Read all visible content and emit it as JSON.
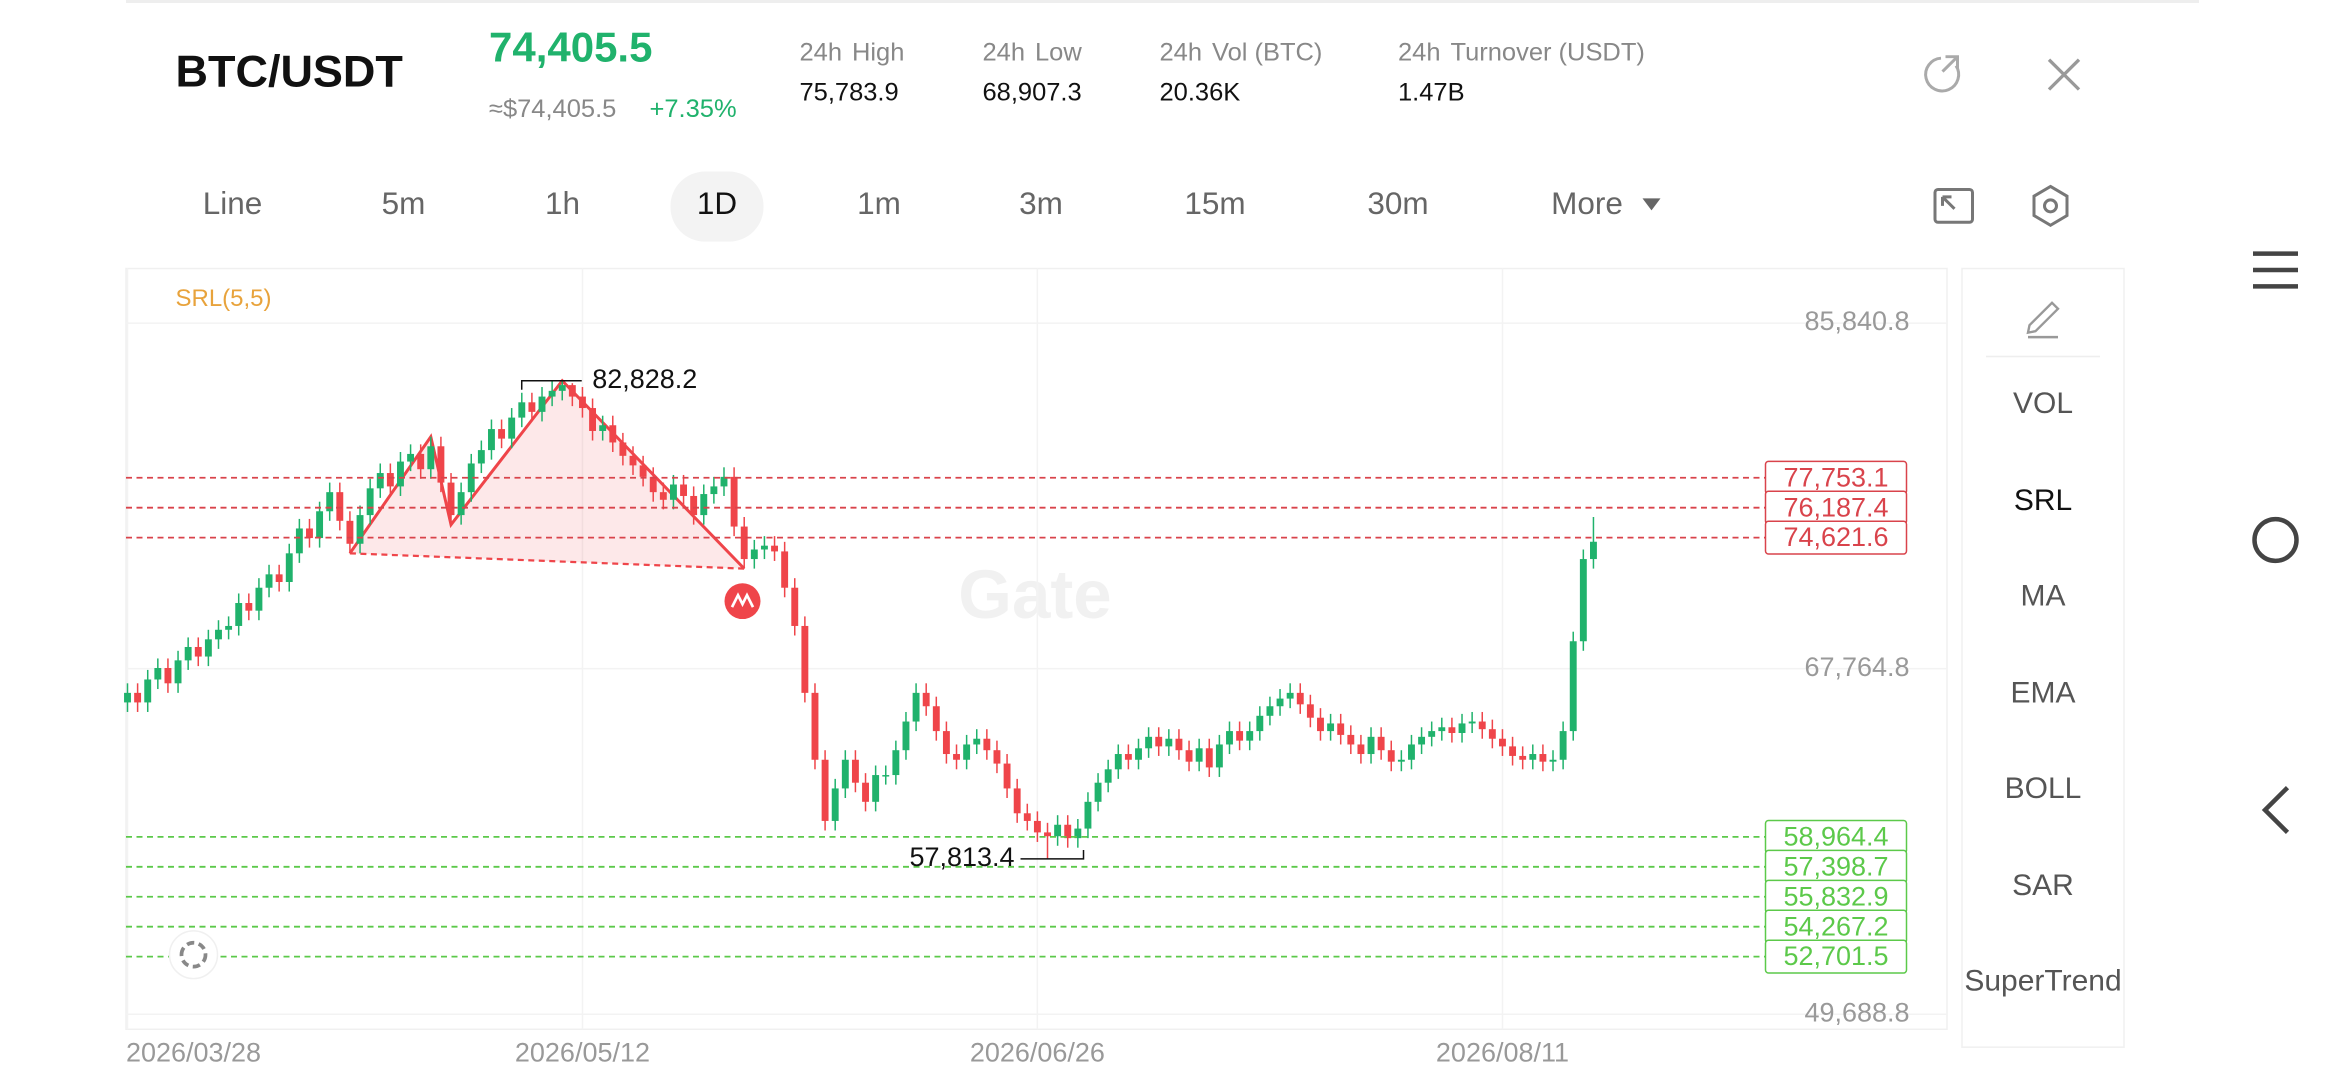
{
  "header": {
    "pair": "BTC/USDT",
    "price": "74,405.5",
    "price_fiat": "≈$74,405.5",
    "change": "+7.35%",
    "stats": [
      {
        "period": "24h",
        "name": "High",
        "value": "75,783.9"
      },
      {
        "period": "24h",
        "name": "Low",
        "value": "68,907.3"
      },
      {
        "period": "24h",
        "name": "Vol (BTC)",
        "value": "20.36K"
      },
      {
        "period": "24h",
        "name": "Turnover (USDT)",
        "value": "1.47B"
      }
    ]
  },
  "tabs": {
    "items": [
      "Line",
      "5m",
      "1h",
      "1D",
      "1m",
      "3m",
      "15m",
      "30m",
      "More"
    ],
    "selected": "1D"
  },
  "indicators": {
    "items": [
      "VOL",
      "SRL",
      "MA",
      "EMA",
      "BOLL",
      "SAR",
      "SuperTrend"
    ],
    "active": "SRL"
  },
  "chart_data": {
    "type": "candlestick",
    "indicator_label": "SRL(5,5)",
    "watermark": "Gate",
    "up_color": "#20b26c",
    "down_color": "#ef454a",
    "categories": [
      "2026/03/28",
      null,
      null,
      null,
      null,
      null,
      null,
      null,
      null,
      null,
      null,
      null,
      null,
      null,
      null,
      null,
      null,
      null,
      null,
      null,
      null,
      null,
      null,
      null,
      null,
      null,
      null,
      null,
      null,
      null,
      null,
      null,
      null,
      null,
      null,
      null,
      null,
      null,
      null,
      null,
      null,
      null,
      null,
      null,
      null,
      "2026/05/12",
      null,
      null,
      null,
      null,
      null,
      null,
      null,
      null,
      null,
      null,
      null,
      null,
      null,
      null,
      null,
      null,
      null,
      null,
      null,
      null,
      null,
      null,
      null,
      null,
      null,
      null,
      null,
      null,
      null,
      null,
      null,
      null,
      null,
      null,
      null,
      null,
      null,
      null,
      null,
      null,
      null,
      null,
      null,
      null,
      "2026/06/26",
      null,
      null,
      null,
      null,
      null,
      null,
      null,
      null,
      null,
      null,
      null,
      null,
      null,
      null,
      null,
      null,
      null,
      null,
      null,
      null,
      null,
      null,
      null,
      null,
      null,
      null,
      null,
      null,
      null,
      null,
      null,
      null,
      null,
      null,
      null,
      null,
      null,
      null,
      null,
      null,
      null,
      null,
      null,
      null,
      null,
      "2026/08/11",
      null,
      null,
      null,
      null,
      null,
      null,
      null,
      null,
      null
    ],
    "open": [
      66000,
      66500,
      66000,
      67200,
      67800,
      67000,
      68200,
      68900,
      68400,
      69300,
      69800,
      70000,
      71200,
      70800,
      72000,
      72700,
      72300,
      73800,
      75100,
      74600,
      76000,
      77000,
      75500,
      74300,
      75800,
      77200,
      78000,
      77300,
      78600,
      79000,
      78200,
      79400,
      77500,
      75800,
      77000,
      78500,
      79200,
      80300,
      79800,
      80900,
      81700,
      81200,
      82000,
      82300,
      82600,
      82000,
      81400,
      80200,
      80500,
      79600,
      78900,
      78400,
      77800,
      77000,
      76600,
      77400,
      76800,
      75800,
      76900,
      77300,
      77800,
      75200,
      73500,
      74000,
      74200,
      73900,
      72000,
      70000,
      66500,
      63000,
      59800,
      61500,
      63000,
      61800,
      60800,
      62200,
      62200,
      63500,
      65000,
      66500,
      65800,
      64500,
      63300,
      63000,
      63800,
      64100,
      63500,
      62800,
      61500,
      60200,
      59800,
      59200,
      59000,
      59600,
      58900,
      59400,
      60800,
      61800,
      62500,
      63300,
      63000,
      63600,
      64200,
      63700,
      64100,
      63500,
      62900,
      63600,
      62600,
      63800,
      64500,
      64000,
      64500,
      65300,
      65800,
      66200,
      66500,
      65900,
      65200,
      64500,
      64900,
      64300,
      63800,
      63300,
      64200,
      63500,
      62900,
      63000,
      63800,
      64200,
      64500,
      64700,
      64400,
      64900,
      65000,
      64600,
      64100,
      63700,
      63200,
      63000,
      63300,
      62900,
      63000,
      64500,
      69200,
      73500
    ],
    "high": [
      67000,
      67000,
      67700,
      68300,
      68300,
      68700,
      69400,
      69400,
      69800,
      70300,
      70500,
      71700,
      71700,
      72500,
      73200,
      73200,
      74300,
      75600,
      75600,
      76500,
      77500,
      77500,
      76000,
      76300,
      77700,
      78500,
      78500,
      79100,
      79500,
      79500,
      79900,
      79900,
      78000,
      77500,
      79000,
      79700,
      80800,
      80800,
      81400,
      82200,
      82200,
      82500,
      82800,
      82828.2,
      82700,
      82500,
      81900,
      81000,
      81000,
      80100,
      79400,
      78900,
      78300,
      77500,
      77900,
      77900,
      77300,
      77400,
      77800,
      78300,
      78300,
      75700,
      74500,
      74700,
      74700,
      74400,
      72500,
      70500,
      67000,
      63500,
      62000,
      63500,
      63500,
      62300,
      62700,
      62700,
      64000,
      65500,
      67000,
      67000,
      66300,
      65000,
      63800,
      64300,
      64600,
      64600,
      64000,
      63300,
      62000,
      60700,
      60300,
      59700,
      60100,
      60100,
      59900,
      61300,
      62300,
      63000,
      63800,
      63800,
      64100,
      64700,
      64700,
      64600,
      64600,
      64000,
      64100,
      64100,
      64300,
      65000,
      65000,
      65000,
      65800,
      66300,
      66700,
      67000,
      67000,
      66400,
      65700,
      65400,
      65400,
      64800,
      64300,
      64700,
      64700,
      64000,
      63500,
      64300,
      64700,
      65000,
      65200,
      65200,
      65400,
      65500,
      65500,
      65100,
      64600,
      64200,
      63700,
      63800,
      63800,
      63500,
      65000,
      69700,
      74000,
      75700
    ],
    "low": [
      65500,
      65500,
      65500,
      66700,
      66500,
      66500,
      67700,
      67900,
      67900,
      68800,
      69300,
      69500,
      70300,
      70300,
      71500,
      71800,
      71800,
      73300,
      74100,
      74100,
      75500,
      75000,
      73800,
      73800,
      75300,
      76700,
      76800,
      76800,
      78100,
      77700,
      77700,
      77000,
      75300,
      75300,
      76500,
      78000,
      78700,
      79300,
      79300,
      80400,
      80700,
      80700,
      81500,
      81800,
      81500,
      80900,
      79700,
      79700,
      79100,
      78400,
      77900,
      77300,
      76500,
      76100,
      76100,
      76300,
      75300,
      75300,
      76400,
      76800,
      74700,
      73000,
      73000,
      73500,
      73400,
      71500,
      69500,
      66000,
      62500,
      59300,
      59300,
      61000,
      61300,
      60300,
      60300,
      61700,
      61700,
      63000,
      64500,
      65300,
      64000,
      62800,
      62500,
      62500,
      63300,
      63000,
      62300,
      61000,
      59700,
      59300,
      58700,
      57813.4,
      58500,
      58400,
      58400,
      58900,
      60300,
      61300,
      62000,
      62500,
      62500,
      63100,
      63200,
      63200,
      63000,
      62400,
      62400,
      62100,
      62100,
      63300,
      63500,
      63500,
      64000,
      64800,
      65300,
      65700,
      65400,
      64700,
      64000,
      64000,
      63800,
      63300,
      62800,
      62800,
      63000,
      62400,
      62400,
      62500,
      63300,
      63700,
      64000,
      63900,
      63900,
      64400,
      64100,
      63600,
      63200,
      62700,
      62500,
      62500,
      62400,
      62400,
      62500,
      64000,
      68700,
      73000
    ],
    "close": [
      66500,
      66000,
      67200,
      67800,
      67000,
      68200,
      68900,
      68400,
      69300,
      69800,
      70000,
      71200,
      70800,
      72000,
      72700,
      72300,
      73800,
      75100,
      74600,
      76000,
      77000,
      75500,
      74300,
      75800,
      77200,
      78000,
      77300,
      78600,
      79000,
      78200,
      79400,
      77500,
      75800,
      77000,
      78500,
      79200,
      80300,
      79800,
      80900,
      81700,
      81200,
      82000,
      82300,
      82600,
      82000,
      81400,
      80200,
      80500,
      79600,
      78900,
      78400,
      77800,
      77000,
      76600,
      77400,
      76800,
      75800,
      76900,
      77300,
      77800,
      75200,
      73500,
      74000,
      74200,
      73900,
      72000,
      70000,
      66500,
      63000,
      59800,
      61500,
      63000,
      61800,
      60800,
      62200,
      62200,
      63500,
      65000,
      66500,
      65800,
      64500,
      63300,
      63000,
      63800,
      64100,
      63500,
      62800,
      61500,
      60200,
      59800,
      59200,
      59000,
      59600,
      58900,
      59400,
      60800,
      61800,
      62500,
      63300,
      63000,
      63600,
      64200,
      63700,
      64100,
      63500,
      62900,
      63600,
      62600,
      63800,
      64500,
      64000,
      64500,
      65300,
      65800,
      66200,
      66500,
      65900,
      65200,
      64500,
      64900,
      64300,
      63800,
      63300,
      64200,
      63500,
      62900,
      63000,
      63800,
      64200,
      64500,
      64700,
      64400,
      64900,
      65000,
      64600,
      64100,
      63700,
      63200,
      63000,
      63300,
      62900,
      63000,
      64500,
      69200,
      73500,
      74405.5
    ],
    "ylim": [
      48900,
      88700
    ],
    "yticks": [
      {
        "value": 85840.8,
        "label": "85,840.8"
      },
      {
        "value": 67764.8,
        "label": "67,764.8"
      },
      {
        "value": 49688.8,
        "label": "49,688.8"
      }
    ],
    "grid": true,
    "resistance_levels": {
      "color": "#d9434b",
      "values": [
        77753.1,
        76187.4,
        74621.6
      ],
      "value_labels": [
        "77,753.1",
        "76,187.4",
        "74,621.6"
      ]
    },
    "support_levels": {
      "color": "#5cc94a",
      "values": [
        58964.4,
        57398.7,
        55832.9,
        54267.2,
        52701.5
      ],
      "value_labels": [
        "58,964.4",
        "57,398.7",
        "55,832.9",
        "54,267.2",
        "52,701.5"
      ]
    },
    "annotations": [
      {
        "value": 82828.2,
        "label": "82,828.2"
      },
      {
        "value": 57813.4,
        "label": "57,813.4"
      }
    ]
  }
}
